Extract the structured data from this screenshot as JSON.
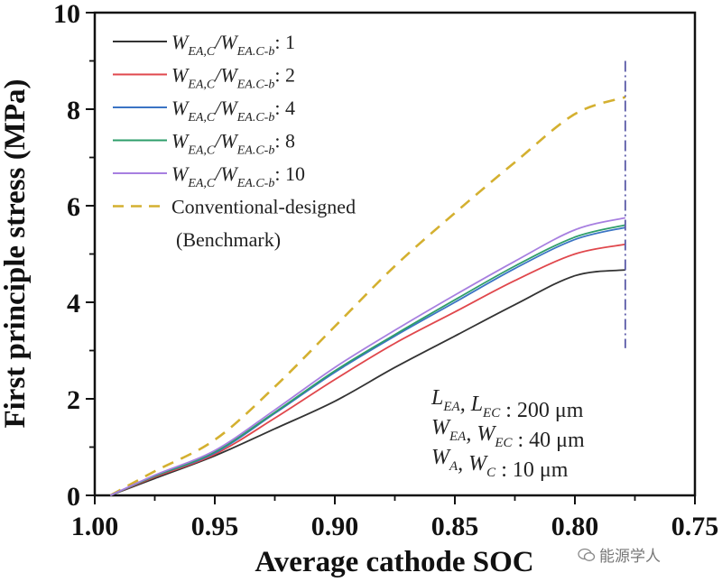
{
  "chart_data": {
    "type": "line",
    "title": "",
    "xlabel": "Average cathode SOC",
    "ylabel": "First principle stress (MPa)",
    "xlim": [
      1.0,
      0.75
    ],
    "ylim": [
      0,
      10
    ],
    "x_reversed": true,
    "x_ticks": [
      1.0,
      0.95,
      0.9,
      0.85,
      0.8,
      0.75
    ],
    "x_tick_labels": [
      "1.00",
      "0.95",
      "0.90",
      "0.85",
      "0.80",
      "0.75"
    ],
    "y_ticks": [
      0,
      2,
      4,
      6,
      8,
      10
    ],
    "y_tick_labels": [
      "0",
      "2",
      "4",
      "6",
      "8",
      "10"
    ],
    "grid": false,
    "legend_position": "top-left",
    "x": [
      0.9935,
      0.975,
      0.95,
      0.925,
      0.9,
      0.875,
      0.85,
      0.825,
      0.8,
      0.779
    ],
    "series": [
      {
        "name": "W_EA,C/W_EA,C-b: 1",
        "legend_value": "1",
        "color": "#333333",
        "style": "solid",
        "values": [
          0.0,
          0.35,
          0.82,
          1.38,
          1.95,
          2.65,
          3.3,
          3.95,
          4.55,
          4.67
        ]
      },
      {
        "name": "W_EA,C/W_EA,C-b: 2",
        "legend_value": "2",
        "color": "#e0474c",
        "style": "solid",
        "values": [
          0.0,
          0.38,
          0.85,
          1.6,
          2.4,
          3.15,
          3.8,
          4.45,
          5.0,
          5.2
        ]
      },
      {
        "name": "W_EA,C/W_EA,C-b: 4",
        "legend_value": "4",
        "color": "#3b74c4",
        "style": "solid",
        "values": [
          0.0,
          0.4,
          0.88,
          1.7,
          2.55,
          3.3,
          4.0,
          4.7,
          5.3,
          5.55
        ]
      },
      {
        "name": "W_EA,C/W_EA,C-b: 8",
        "legend_value": "8",
        "color": "#2e9e6a",
        "style": "solid",
        "values": [
          0.0,
          0.4,
          0.9,
          1.72,
          2.58,
          3.33,
          4.05,
          4.75,
          5.35,
          5.6
        ]
      },
      {
        "name": "W_EA,C/W_EA,C-b: 10",
        "legend_value": "10",
        "color": "#a77fe0",
        "style": "solid",
        "values": [
          0.0,
          0.42,
          0.93,
          1.77,
          2.65,
          3.42,
          4.15,
          4.85,
          5.5,
          5.75
        ]
      },
      {
        "name": "Conventional-designed (Benchmark)",
        "color": "#d4b030",
        "style": "dashed",
        "values": [
          0.0,
          0.5,
          1.15,
          2.25,
          3.5,
          4.75,
          5.85,
          6.9,
          7.9,
          8.25
        ]
      }
    ],
    "reference_line": {
      "x": 0.779,
      "color": "#5a5aa8",
      "style": "dash-dot",
      "y_range": [
        3.05,
        9.0
      ]
    },
    "legend": {
      "ratio_prefix_main": "W",
      "ratio_sub_main": "EA,C",
      "ratio_slash": "/",
      "ratio_sub_base": "EA.C-b",
      "colon": ":",
      "benchmark_line1": "Conventional-designed",
      "benchmark_line2": "(Benchmark)"
    },
    "annotations": [
      {
        "parts": [
          [
            "L",
            "EA"
          ],
          [
            ", L",
            "EC"
          ]
        ],
        "value": ": 200 μm"
      },
      {
        "parts": [
          [
            "W",
            "EA"
          ],
          [
            ", W",
            "EC"
          ]
        ],
        "value": ": 40 μm"
      },
      {
        "parts": [
          [
            "W",
            "A"
          ],
          [
            ", W",
            "C"
          ]
        ],
        "value": ": 10 μm"
      }
    ]
  },
  "watermark": {
    "text": "能源学人",
    "icon": "wechat-icon"
  }
}
